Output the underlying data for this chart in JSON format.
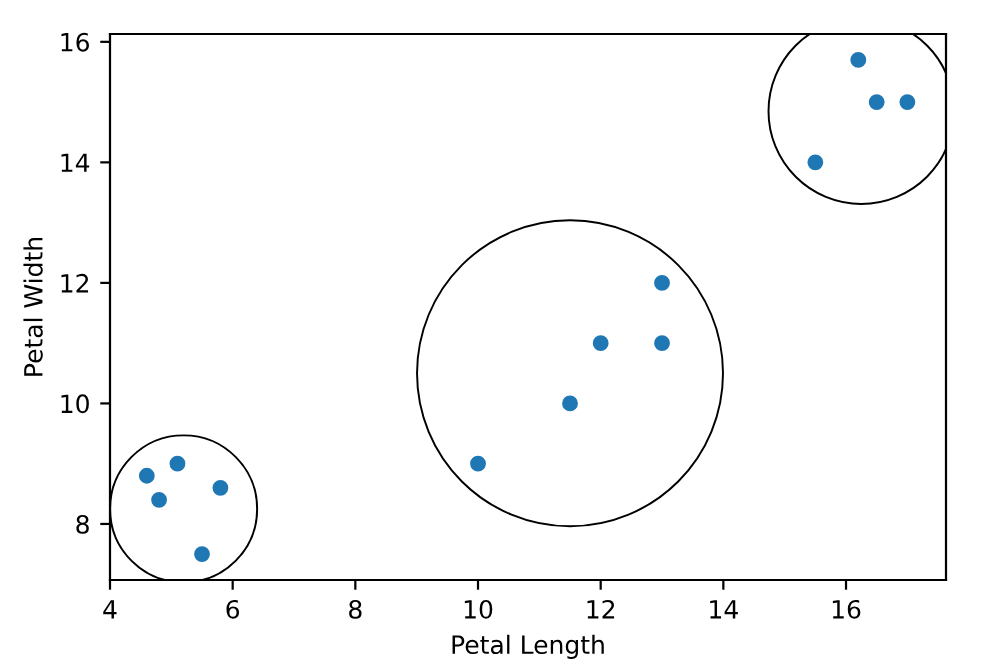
{
  "chart_data": {
    "type": "scatter",
    "xlabel": "Petal Length",
    "ylabel": "Petal Width",
    "series": [
      {
        "color": "#1f77b4",
        "x": [
          4.6,
          4.8,
          5.1,
          5.8,
          5.5
        ],
        "values": [
          8.8,
          8.4,
          9.0,
          8.6,
          7.5
        ]
      },
      {
        "color": "#1f77b4",
        "x": [
          10.0,
          11.5,
          12.0,
          13.0,
          13.0
        ],
        "values": [
          9.0,
          10.0,
          11.0,
          11.0,
          12.0
        ]
      },
      {
        "color": "#1f77b4",
        "x": [
          15.5,
          16.2,
          16.5,
          17.0
        ],
        "values": [
          14.0,
          15.7,
          15.0,
          15.0
        ]
      }
    ],
    "xlim": [
      4,
      17.63
    ],
    "ylim": [
      7.07,
      16.13
    ],
    "xticks": [
      4,
      6,
      8,
      10,
      12,
      14,
      16
    ],
    "yticks": [
      8,
      10,
      12,
      14,
      16
    ],
    "marker": "circle",
    "grid": false,
    "legend": false
  }
}
